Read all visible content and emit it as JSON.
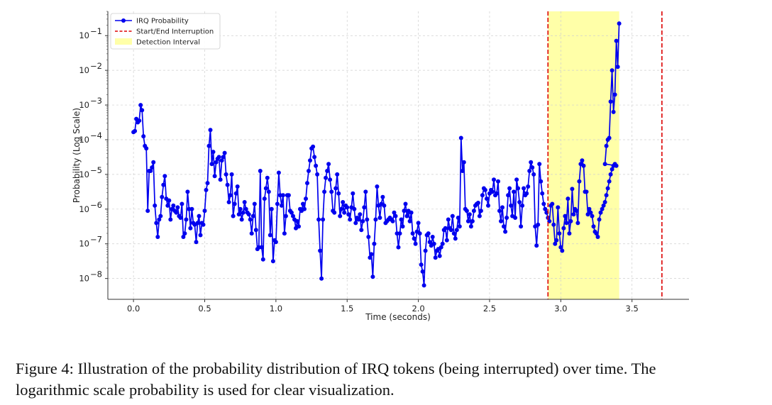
{
  "chart_data": {
    "type": "line",
    "xlabel": "Time (seconds)",
    "ylabel": "Probability (Log Scale)",
    "yscale": "log",
    "xlim": [
      -0.18,
      3.9
    ],
    "ylim_exponent": [
      -8.6,
      -0.3
    ],
    "x_ticks": [
      0.0,
      0.5,
      1.0,
      1.5,
      2.0,
      2.5,
      3.0,
      3.5
    ],
    "x_tick_labels": [
      "0.0",
      "0.5",
      "1.0",
      "1.5",
      "2.0",
      "2.5",
      "3.0",
      "3.5"
    ],
    "y_tick_exponents": [
      -8,
      -7,
      -6,
      -5,
      -4,
      -3,
      -2,
      -1
    ],
    "grid": true,
    "legend_position": "top-left",
    "colors": {
      "series": "#0000ee",
      "marker_line": "#dd0000",
      "interval": "#ffffa8"
    },
    "legend": [
      {
        "label": "IRQ Probability",
        "kind": "line-marker"
      },
      {
        "label": "Start/End Interruption",
        "kind": "dashed"
      },
      {
        "label": "Detection Interval",
        "kind": "patch"
      }
    ],
    "vlines": [
      2.91,
      3.71
    ],
    "detection_interval": [
      2.91,
      3.41
    ],
    "series": [
      {
        "name": "IRQ Probability",
        "dt": 0.01,
        "x_start": 0.0,
        "log10_y": [
          -3.78,
          -3.75,
          -3.4,
          -3.5,
          -3.45,
          -3.0,
          -3.15,
          -3.9,
          -4.18,
          -4.25,
          -6.05,
          -4.9,
          -4.9,
          -4.8,
          -4.65,
          -5.9,
          -6.4,
          -6.8,
          -6.3,
          -6.2,
          -5.65,
          -5.3,
          -5.05,
          -5.7,
          -5.9,
          -5.75,
          -6.3,
          -6.0,
          -5.9,
          -6.05,
          -6.1,
          -5.95,
          -6.2,
          -6.25,
          -5.85,
          -6.8,
          -6.7,
          -6.3,
          -5.5,
          -6.0,
          -6.55,
          -6.0,
          -6.4,
          -6.45,
          -6.95,
          -6.4,
          -6.2,
          -6.75,
          -6.4,
          -6.45,
          -6.05,
          -5.45,
          -5.25,
          -4.18,
          -3.72,
          -4.7,
          -4.35,
          -5.05,
          -4.65,
          -4.55,
          -4.5,
          -5.15,
          -4.6,
          -4.5,
          -4.38,
          -5.0,
          -5.3,
          -5.8,
          -5.6,
          -5.0,
          -6.2,
          -5.85,
          -5.55,
          -5.35,
          -6.15,
          -6.0,
          -6.3,
          -6.1,
          -5.8,
          -6.0,
          -6.1,
          -6.15,
          -6.3,
          -6.7,
          -6.2,
          -5.85,
          -6.6,
          -7.15,
          -7.1,
          -4.9,
          -7.1,
          -7.45,
          -5.7,
          -5.4,
          -5.1,
          -5.5,
          -6.75,
          -6.0,
          -7.5,
          -6.9,
          -6.95,
          -5.85,
          -4.95,
          -5.6,
          -5.9,
          -5.6,
          -6.7,
          -6.2,
          -5.6,
          -5.6,
          -6.05,
          -6.1,
          -6.2,
          -6.3,
          -6.55,
          -6.35,
          -6.5,
          -6.0,
          -6.05,
          -5.85,
          -6.0,
          -5.7,
          -5.25,
          -4.9,
          -4.6,
          -4.25,
          -4.2,
          -4.5,
          -4.75,
          -5.0,
          -6.3,
          -7.2,
          -8.0,
          -6.3,
          -5.5,
          -5.1,
          -4.9,
          -4.7,
          -5.15,
          -5.5,
          -6.05,
          -6.1,
          -5.4,
          -5.0,
          -5.55,
          -6.2,
          -6.0,
          -5.8,
          -6.1,
          -5.9,
          -5.95,
          -6.15,
          -6.3,
          -5.95,
          -5.55,
          -6.0,
          -6.4,
          -6.25,
          -6.3,
          -6.15,
          -6.6,
          -6.35,
          -5.95,
          -5.5,
          -6.3,
          -6.8,
          -7.4,
          -7.3,
          -7.95,
          -7.0,
          -6.3,
          -5.35,
          -5.9,
          -6.25,
          -5.85,
          -5.65,
          -5.9,
          -6.4,
          -6.35,
          -6.3,
          -6.25,
          -6.3,
          -6.35,
          -6.1,
          -6.2,
          -6.7,
          -7.1,
          -6.7,
          -6.3,
          -6.5,
          -6.05,
          -5.85,
          -6.2,
          -6.05,
          -6.35,
          -6.1,
          -6.7,
          -6.85,
          -7.0,
          -6.65,
          -6.4,
          -6.7,
          -7.6,
          -7.8,
          -8.2,
          -7.2,
          -6.75,
          -6.7,
          -6.95,
          -7.05,
          -6.8,
          -7.0,
          -7.4,
          -7.2,
          -7.15,
          -7.35,
          -7.1,
          -7.0,
          -6.6,
          -6.55,
          -6.9,
          -6.3,
          -6.55,
          -6.6,
          -6.2,
          -6.7,
          -6.85,
          -6.6,
          -6.25,
          -6.5,
          -3.95,
          -4.9,
          -4.65,
          -6.0,
          -6.05,
          -6.35,
          -6.15,
          -6.5,
          -6.35,
          -6.05,
          -5.9,
          -5.85,
          -5.82,
          -6.2,
          -6.05,
          -5.6,
          -5.4,
          -5.45,
          -5.7,
          -5.9,
          -5.55,
          -5.45,
          -5.5,
          -5.15,
          -5.6,
          -5.55,
          -5.2,
          -6.05,
          -6.35,
          -5.95,
          -6.5,
          -6.65,
          -6.25,
          -5.6,
          -5.4,
          -5.9,
          -6.2,
          -5.5,
          -6.25,
          -5.15,
          -5.4,
          -5.8,
          -6.5,
          -5.9,
          -5.4,
          -5.6,
          -5.55,
          -5.35,
          -4.9,
          -4.65,
          -4.8,
          -5.0,
          -6.5,
          -7.05,
          -6.45,
          -4.7,
          -5.2,
          -5.55,
          -5.85,
          -6.0,
          -6.1,
          -6.25,
          -6.35,
          -5.9,
          -5.85,
          -6.45,
          -7.0,
          -6.9,
          -5.95,
          -6.7,
          -7.1,
          -7.2,
          -6.55,
          -6.2,
          -6.4,
          -5.7,
          -6.7,
          -6.35,
          -5.42,
          -6.15,
          -6.0,
          -6.05,
          -6.4,
          -5.2,
          -4.7,
          -4.6,
          -4.75,
          -5.5,
          -5.5,
          -6.15,
          -6.0,
          -6.1,
          -6.2,
          -6.5,
          -6.65,
          -6.7,
          -6.8,
          -6.3,
          -6.1,
          -6.0,
          -5.9,
          -5.8,
          -5.6,
          -5.4,
          -5.2,
          -5.0,
          -4.85,
          -4.75,
          -4.7,
          -4.75
        ]
      }
    ],
    "series_tail": [
      [
        3.31,
        -4.7
      ],
      [
        3.32,
        -4.18
      ],
      [
        3.33,
        -4.0
      ],
      [
        3.34,
        -3.95
      ],
      [
        3.35,
        -2.9
      ],
      [
        3.36,
        -2.0
      ],
      [
        3.37,
        -3.2
      ],
      [
        3.38,
        -2.7
      ],
      [
        3.39,
        -1.15
      ],
      [
        3.4,
        -1.9
      ],
      [
        3.41,
        -0.65
      ]
    ]
  },
  "caption": {
    "line1": "Figure 4: Illustration of the probability distribution of IRQ tokens (being interrupted) over time. The",
    "line2": "logarithmic scale probability is used for clear visualization."
  }
}
